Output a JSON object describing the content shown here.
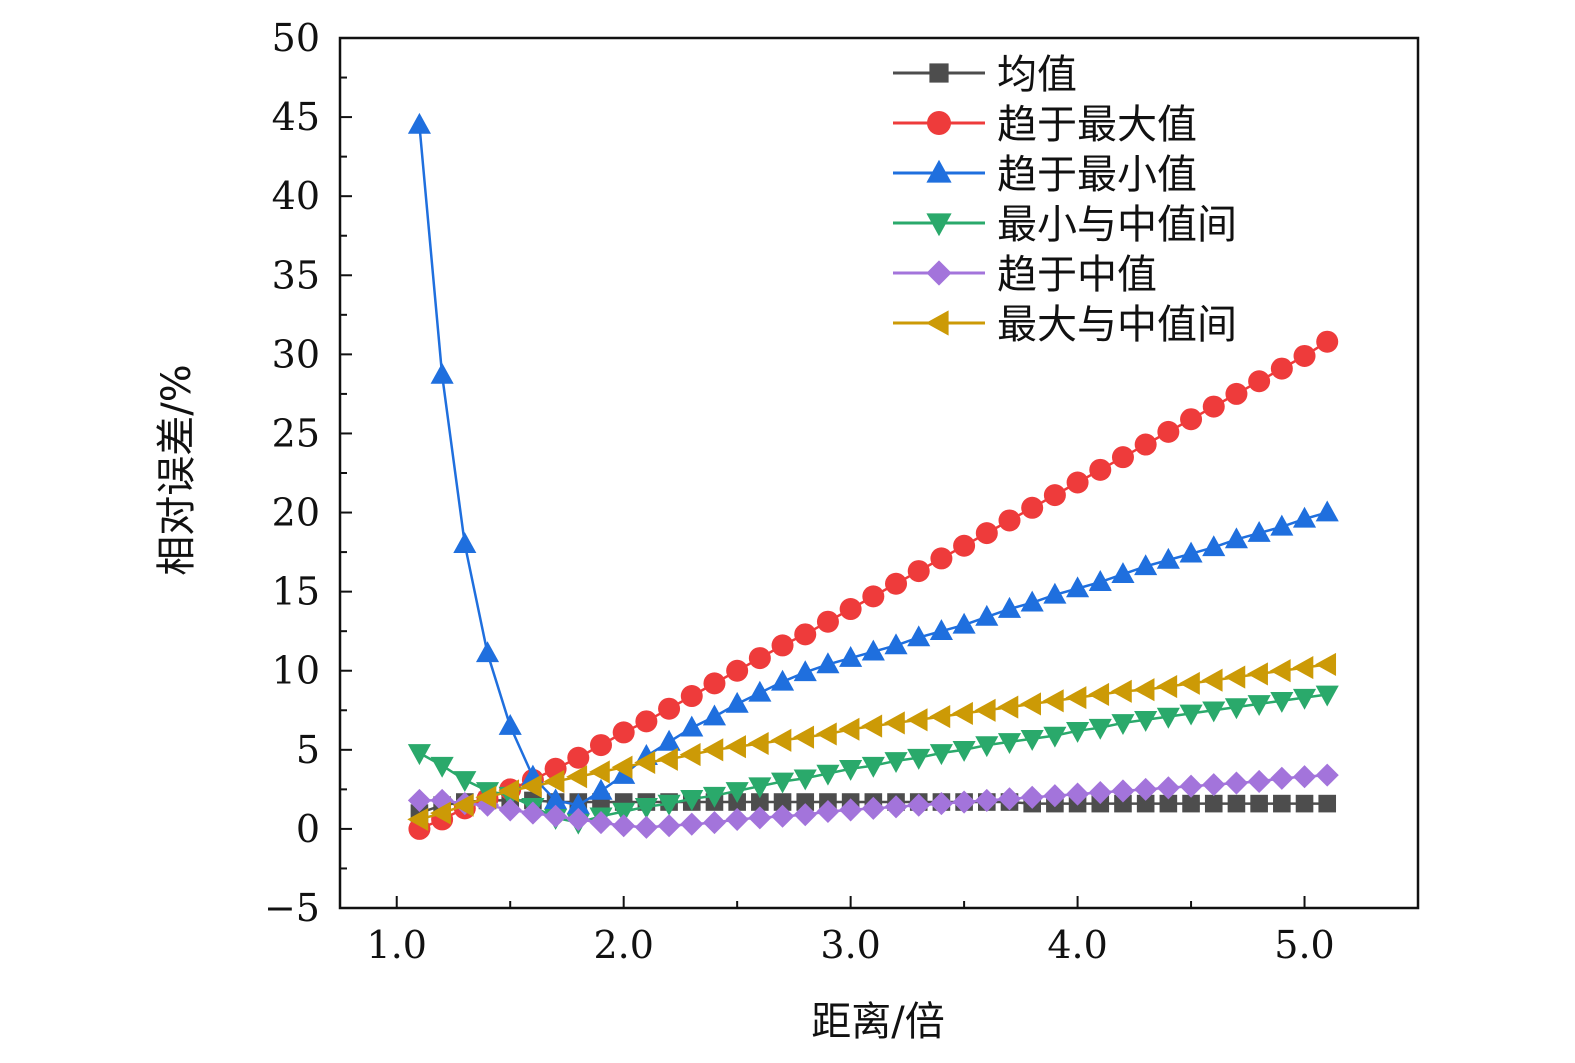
{
  "chart_data": {
    "type": "line",
    "title": "",
    "xlabel": "距离/倍",
    "ylabel": "相对误差/%",
    "xlim": [
      0.75,
      5.5
    ],
    "ylim": [
      -5,
      50
    ],
    "x_ticks": [
      1.0,
      2.0,
      3.0,
      4.0,
      5.0
    ],
    "x_tick_labels": [
      "1.0",
      "2.0",
      "3.0",
      "4.0",
      "5.0"
    ],
    "y_ticks": [
      -5,
      0,
      5,
      10,
      15,
      20,
      25,
      30,
      35,
      40,
      45,
      50
    ],
    "y_tick_labels": [
      "−5",
      "0",
      "5",
      "10",
      "15",
      "20",
      "25",
      "30",
      "35",
      "40",
      "45",
      "50"
    ],
    "grid": false,
    "legend_position": "top-right",
    "x": [
      1.1,
      1.2,
      1.3,
      1.4,
      1.5,
      1.6,
      1.7,
      1.8,
      1.9,
      2.0,
      2.1,
      2.2,
      2.3,
      2.4,
      2.5,
      2.6,
      2.7,
      2.8,
      2.9,
      3.0,
      3.1,
      3.2,
      3.3,
      3.4,
      3.5,
      3.6,
      3.7,
      3.8,
      3.9,
      4.0,
      4.1,
      4.2,
      4.3,
      4.4,
      4.5,
      4.6,
      4.7,
      4.8,
      4.9,
      5.0,
      5.1
    ],
    "series": [
      {
        "name": "均值",
        "color": "#4d4d4d",
        "marker": "square",
        "values": [
          1.0,
          1.5,
          1.7,
          1.8,
          1.8,
          1.8,
          1.7,
          1.7,
          1.7,
          1.7,
          1.7,
          1.7,
          1.7,
          1.7,
          1.7,
          1.7,
          1.7,
          1.7,
          1.7,
          1.7,
          1.7,
          1.7,
          1.7,
          1.7,
          1.7,
          1.7,
          1.7,
          1.6,
          1.6,
          1.6,
          1.6,
          1.6,
          1.6,
          1.6,
          1.6,
          1.6,
          1.6,
          1.6,
          1.6,
          1.6,
          1.6
        ]
      },
      {
        "name": "趋于最大值",
        "color": "#ee3b3b",
        "marker": "circle",
        "values": [
          0.0,
          0.6,
          1.3,
          1.9,
          2.5,
          3.1,
          3.8,
          4.5,
          5.3,
          6.1,
          6.8,
          7.6,
          8.4,
          9.2,
          10.0,
          10.8,
          11.6,
          12.3,
          13.1,
          13.9,
          14.7,
          15.5,
          16.3,
          17.1,
          17.9,
          18.7,
          19.5,
          20.3,
          21.1,
          21.9,
          22.7,
          23.5,
          24.3,
          25.1,
          25.9,
          26.7,
          27.5,
          28.3,
          29.1,
          29.9,
          30.8
        ]
      },
      {
        "name": "趋于最小值",
        "color": "#1f6fde",
        "marker": "triangle-up",
        "values": [
          44.5,
          28.7,
          18.0,
          11.1,
          6.5,
          3.3,
          1.8,
          1.5,
          2.4,
          3.4,
          4.6,
          5.5,
          6.4,
          7.1,
          7.9,
          8.6,
          9.3,
          9.9,
          10.4,
          10.8,
          11.2,
          11.6,
          12.1,
          12.5,
          12.9,
          13.4,
          13.9,
          14.3,
          14.8,
          15.2,
          15.6,
          16.1,
          16.6,
          17.0,
          17.4,
          17.8,
          18.3,
          18.7,
          19.1,
          19.6,
          20.0
        ]
      },
      {
        "name": "最小与中值间",
        "color": "#2aa96b",
        "marker": "triangle-down",
        "values": [
          4.8,
          4.0,
          3.1,
          2.4,
          2.1,
          1.4,
          0.7,
          0.4,
          0.8,
          1.1,
          1.4,
          1.6,
          1.9,
          2.1,
          2.4,
          2.7,
          3.0,
          3.2,
          3.5,
          3.8,
          4.0,
          4.3,
          4.5,
          4.8,
          5.0,
          5.3,
          5.5,
          5.7,
          5.9,
          6.2,
          6.4,
          6.7,
          6.9,
          7.1,
          7.3,
          7.5,
          7.7,
          7.9,
          8.1,
          8.3,
          8.5
        ]
      },
      {
        "name": "趋于中值",
        "color": "#a374db",
        "marker": "diamond",
        "values": [
          1.8,
          1.8,
          1.6,
          1.5,
          1.2,
          1.0,
          0.8,
          0.6,
          0.4,
          0.2,
          0.1,
          0.2,
          0.3,
          0.4,
          0.6,
          0.7,
          0.8,
          0.9,
          1.1,
          1.2,
          1.3,
          1.4,
          1.5,
          1.6,
          1.7,
          1.8,
          1.9,
          2.0,
          2.1,
          2.2,
          2.3,
          2.4,
          2.5,
          2.6,
          2.7,
          2.8,
          2.9,
          3.0,
          3.2,
          3.3,
          3.4
        ]
      },
      {
        "name": "最大与中值间",
        "color": "#cc9a06",
        "marker": "triangle-left",
        "values": [
          0.6,
          1.0,
          1.5,
          2.0,
          2.4,
          2.7,
          3.0,
          3.3,
          3.6,
          3.9,
          4.2,
          4.4,
          4.7,
          5.0,
          5.2,
          5.4,
          5.6,
          5.8,
          6.0,
          6.3,
          6.5,
          6.7,
          6.9,
          7.1,
          7.3,
          7.5,
          7.7,
          7.9,
          8.1,
          8.3,
          8.5,
          8.7,
          8.8,
          9.0,
          9.2,
          9.4,
          9.6,
          9.8,
          10.0,
          10.2,
          10.4
        ]
      }
    ]
  }
}
